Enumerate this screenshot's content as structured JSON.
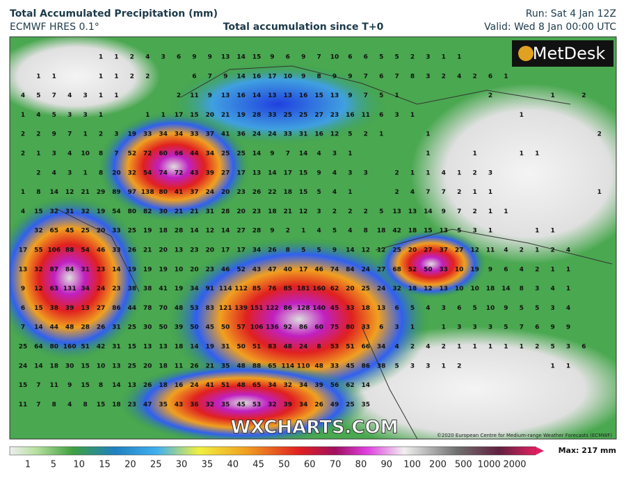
{
  "header": {
    "title": "Total Accumulated Precipitation (mm)",
    "model": "ECMWF HRES 0.1°",
    "subtitle": "Total accumulation since T+0",
    "run": "Run: Sat 4 Jan 12Z",
    "valid": "Valid: Wed 8 Jan 00:00 UTC"
  },
  "map": {
    "logo": "MetDesk",
    "watermark": "WXCHARTS.COM",
    "copyright": "©2020 European Centre for Medium-range Weather Forecasts (ECMWF)",
    "grid": [
      [
        null,
        null,
        null,
        null,
        null,
        1,
        1,
        2,
        4,
        3,
        6,
        9,
        9,
        13,
        14,
        15,
        9,
        6,
        9,
        7,
        10,
        6,
        6,
        5,
        5,
        2,
        3,
        1,
        1
      ],
      [
        null,
        1,
        1,
        null,
        null,
        1,
        1,
        2,
        2,
        null,
        null,
        6,
        7,
        9,
        14,
        16,
        17,
        10,
        9,
        8,
        9,
        9,
        7,
        6,
        7,
        8,
        3,
        2,
        4,
        2,
        6,
        1
      ],
      [
        4,
        5,
        7,
        4,
        3,
        1,
        1,
        null,
        null,
        null,
        2,
        11,
        9,
        13,
        16,
        14,
        13,
        13,
        16,
        15,
        13,
        9,
        7,
        5,
        1,
        null,
        null,
        null,
        null,
        null,
        2,
        null,
        null,
        null,
        1,
        null,
        2
      ],
      [
        1,
        4,
        5,
        3,
        3,
        1,
        null,
        null,
        1,
        1,
        17,
        15,
        20,
        21,
        19,
        28,
        33,
        25,
        25,
        27,
        23,
        16,
        11,
        6,
        3,
        1,
        null,
        null,
        null,
        null,
        null,
        null,
        1
      ],
      [
        2,
        2,
        9,
        7,
        1,
        2,
        3,
        19,
        33,
        34,
        34,
        33,
        37,
        41,
        36,
        24,
        24,
        33,
        31,
        16,
        12,
        5,
        2,
        1,
        null,
        null,
        1,
        null,
        null,
        null,
        null,
        null,
        null,
        null,
        null,
        null,
        null,
        2
      ],
      [
        2,
        1,
        3,
        4,
        10,
        8,
        7,
        52,
        72,
        60,
        66,
        44,
        34,
        25,
        25,
        14,
        9,
        7,
        14,
        4,
        3,
        1,
        null,
        null,
        null,
        null,
        1,
        null,
        null,
        1,
        null,
        null,
        1,
        1
      ],
      [
        null,
        2,
        4,
        3,
        1,
        8,
        20,
        32,
        54,
        74,
        72,
        43,
        39,
        27,
        17,
        13,
        14,
        17,
        15,
        9,
        4,
        3,
        3,
        null,
        2,
        1,
        1,
        4,
        1,
        2,
        3
      ],
      [
        1,
        8,
        14,
        12,
        21,
        29,
        89,
        97,
        138,
        80,
        41,
        37,
        24,
        20,
        23,
        26,
        22,
        18,
        15,
        5,
        4,
        1,
        null,
        null,
        2,
        4,
        7,
        7,
        2,
        1,
        1,
        null,
        null,
        null,
        null,
        null,
        null,
        1
      ],
      [
        4,
        15,
        32,
        31,
        32,
        19,
        54,
        80,
        82,
        30,
        21,
        21,
        31,
        28,
        20,
        23,
        18,
        21,
        12,
        3,
        2,
        2,
        2,
        5,
        13,
        13,
        14,
        9,
        7,
        2,
        1,
        1
      ],
      [
        null,
        32,
        65,
        45,
        25,
        20,
        33,
        25,
        19,
        18,
        28,
        14,
        12,
        14,
        27,
        28,
        9,
        2,
        1,
        4,
        5,
        4,
        8,
        18,
        42,
        18,
        15,
        13,
        5,
        3,
        1,
        null,
        null,
        1,
        1
      ],
      [
        17,
        55,
        106,
        88,
        54,
        46,
        33,
        26,
        21,
        20,
        13,
        23,
        20,
        17,
        17,
        34,
        26,
        8,
        5,
        5,
        9,
        14,
        12,
        12,
        25,
        20,
        27,
        37,
        27,
        12,
        11,
        4,
        2,
        1,
        2,
        4
      ],
      [
        13,
        32,
        87,
        84,
        31,
        23,
        14,
        19,
        19,
        19,
        10,
        20,
        23,
        46,
        52,
        43,
        47,
        40,
        17,
        46,
        74,
        84,
        24,
        27,
        68,
        52,
        50,
        33,
        10,
        19,
        9,
        6,
        4,
        2,
        1,
        1
      ],
      [
        9,
        12,
        63,
        131,
        34,
        24,
        23,
        38,
        38,
        41,
        19,
        34,
        91,
        114,
        112,
        85,
        76,
        85,
        181,
        160,
        62,
        20,
        25,
        24,
        32,
        18,
        12,
        13,
        10,
        10,
        18,
        14,
        8,
        3,
        4,
        1
      ],
      [
        6,
        15,
        38,
        39,
        13,
        27,
        86,
        44,
        78,
        70,
        48,
        53,
        83,
        121,
        139,
        151,
        122,
        86,
        128,
        140,
        45,
        33,
        18,
        13,
        6,
        5,
        4,
        3,
        6,
        5,
        10,
        9,
        5,
        5,
        3,
        4
      ],
      [
        7,
        14,
        44,
        48,
        28,
        26,
        31,
        25,
        30,
        50,
        39,
        50,
        45,
        50,
        57,
        106,
        136,
        92,
        86,
        60,
        75,
        80,
        33,
        6,
        3,
        1,
        null,
        1,
        3,
        3,
        3,
        5,
        7,
        6,
        9,
        9
      ],
      [
        25,
        64,
        80,
        160,
        51,
        42,
        31,
        15,
        13,
        13,
        18,
        14,
        19,
        31,
        50,
        51,
        83,
        48,
        24,
        8,
        53,
        51,
        66,
        34,
        4,
        2,
        4,
        2,
        1,
        1,
        1,
        1,
        1,
        2,
        5,
        3,
        6
      ],
      [
        24,
        14,
        18,
        30,
        15,
        10,
        13,
        25,
        20,
        18,
        11,
        26,
        21,
        35,
        48,
        88,
        65,
        114,
        110,
        48,
        33,
        45,
        86,
        38,
        5,
        3,
        3,
        1,
        2,
        null,
        null,
        null,
        null,
        null,
        1,
        1
      ],
      [
        15,
        7,
        11,
        9,
        15,
        8,
        14,
        13,
        26,
        18,
        16,
        24,
        41,
        51,
        48,
        65,
        34,
        32,
        34,
        39,
        56,
        62,
        14
      ],
      [
        11,
        7,
        8,
        4,
        8,
        15,
        18,
        23,
        47,
        35,
        43,
        36,
        32,
        35,
        45,
        53,
        32,
        39,
        34,
        26,
        49,
        25,
        35
      ]
    ]
  },
  "legend": {
    "labels": [
      1,
      5,
      10,
      15,
      20,
      25,
      30,
      35,
      40,
      45,
      50,
      60,
      70,
      80,
      90,
      100,
      200,
      500,
      1000,
      2000
    ],
    "max": "Max: 217 mm"
  }
}
